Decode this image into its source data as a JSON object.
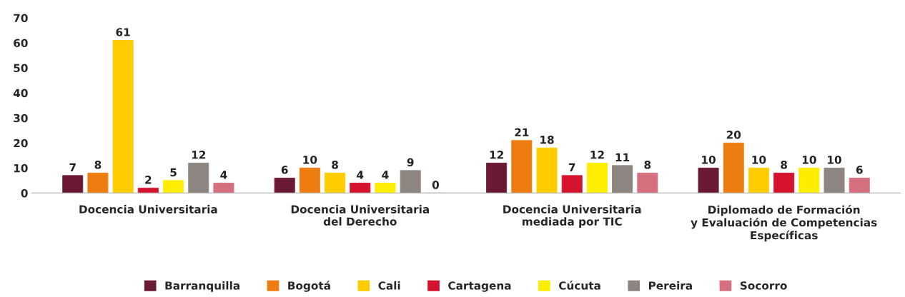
{
  "chart_data": {
    "type": "bar",
    "categories": [
      "Docencia Universitaria",
      "Docencia Universitaria\ndel Derecho",
      "Docencia Universitaria\nmediada por TIC",
      "Diplomado de Formación\ny Evaluación de Competencias\nEspecíficas"
    ],
    "series": [
      {
        "name": "Barranquilla",
        "color": "#6b1a35",
        "values": [
          7,
          6,
          12,
          10
        ]
      },
      {
        "name": "Bogotá",
        "color": "#ee7d11",
        "values": [
          8,
          10,
          21,
          20
        ]
      },
      {
        "name": "Cali",
        "color": "#ffcc00",
        "values": [
          61,
          8,
          18,
          10
        ]
      },
      {
        "name": "Cartagena",
        "color": "#d5132e",
        "values": [
          2,
          4,
          7,
          8
        ]
      },
      {
        "name": "Cúcuta",
        "color": "#ffed00",
        "values": [
          5,
          4,
          12,
          10
        ]
      },
      {
        "name": "Pereira",
        "color": "#8c8580",
        "values": [
          12,
          9,
          11,
          10
        ]
      },
      {
        "name": "Socorro",
        "color": "#d5707f",
        "values": [
          4,
          0,
          8,
          6
        ]
      }
    ],
    "ylim": [
      0,
      70
    ],
    "yticks": [
      0,
      10,
      20,
      30,
      40,
      50,
      60,
      70
    ],
    "data_labels": true,
    "grid": false,
    "legend": "bottom"
  }
}
